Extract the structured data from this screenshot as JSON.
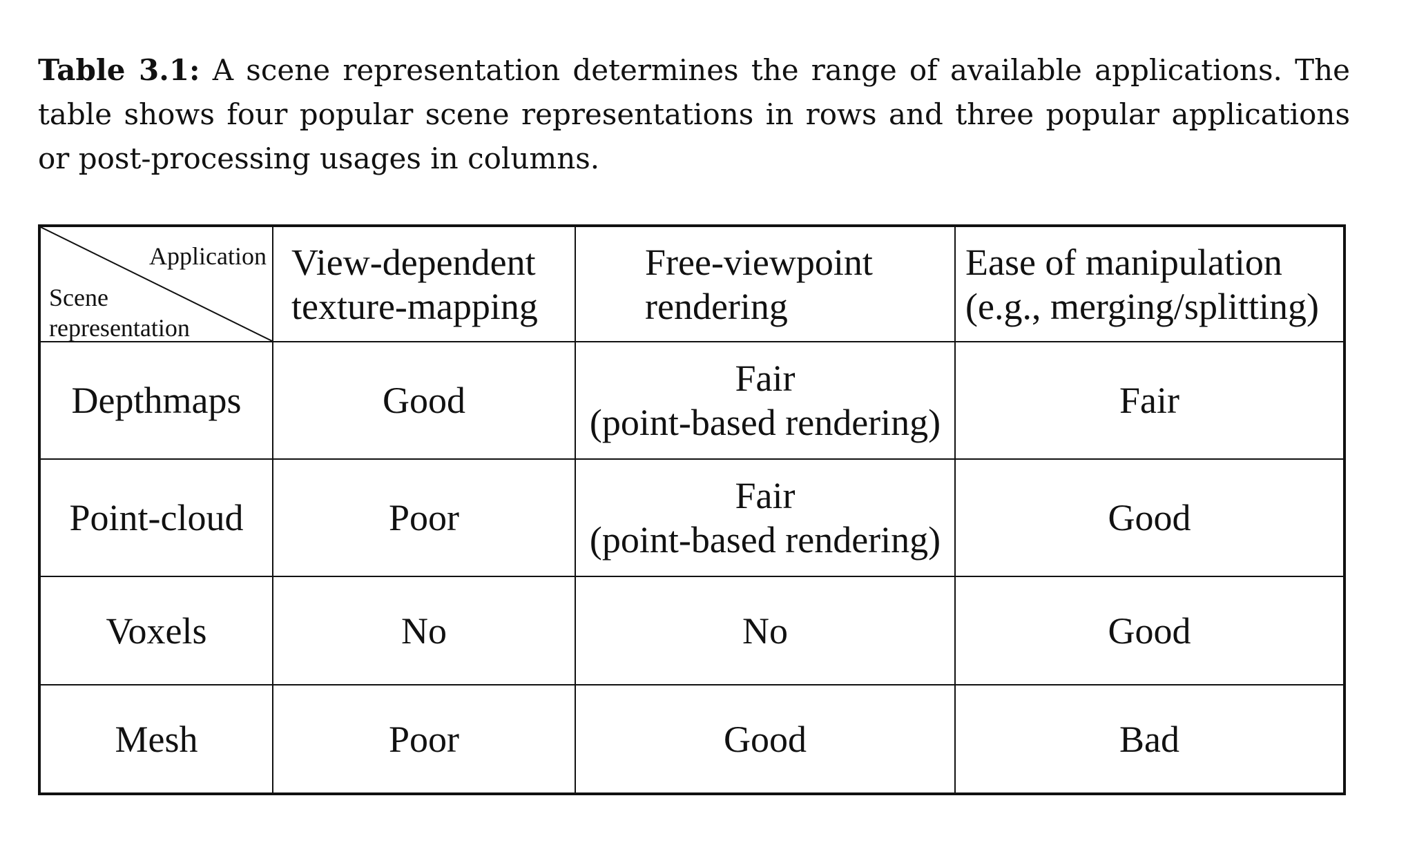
{
  "caption": {
    "label": "Table 3.1:",
    "text": "A scene representation determines the range of available applications. The table shows four popular scene representations in rows and three popular applications or post-processing usages in columns."
  },
  "table": {
    "corner": {
      "column_axis": "Application",
      "row_axis_line1": "Scene",
      "row_axis_line2": "representation"
    },
    "columns": [
      {
        "line1": "View-dependent",
        "line2": "texture-mapping"
      },
      {
        "line1": "Free-viewpoint",
        "line2": "rendering"
      },
      {
        "line1": "Ease of manipulation",
        "line2": "(e.g., merging/splitting)"
      }
    ],
    "rows": [
      {
        "name": "Depthmaps",
        "cells": [
          {
            "line1": "Good",
            "line2": ""
          },
          {
            "line1": "Fair",
            "line2": "(point-based rendering)"
          },
          {
            "line1": "Fair",
            "line2": ""
          }
        ]
      },
      {
        "name": "Point-cloud",
        "cells": [
          {
            "line1": "Poor",
            "line2": ""
          },
          {
            "line1": "Fair",
            "line2": "(point-based rendering)"
          },
          {
            "line1": "Good",
            "line2": ""
          }
        ]
      },
      {
        "name": "Voxels",
        "cells": [
          {
            "line1": "No",
            "line2": ""
          },
          {
            "line1": "No",
            "line2": ""
          },
          {
            "line1": "Good",
            "line2": ""
          }
        ]
      },
      {
        "name": "Mesh",
        "cells": [
          {
            "line1": "Poor",
            "line2": ""
          },
          {
            "line1": "Good",
            "line2": ""
          },
          {
            "line1": "Bad",
            "line2": ""
          }
        ]
      }
    ]
  }
}
